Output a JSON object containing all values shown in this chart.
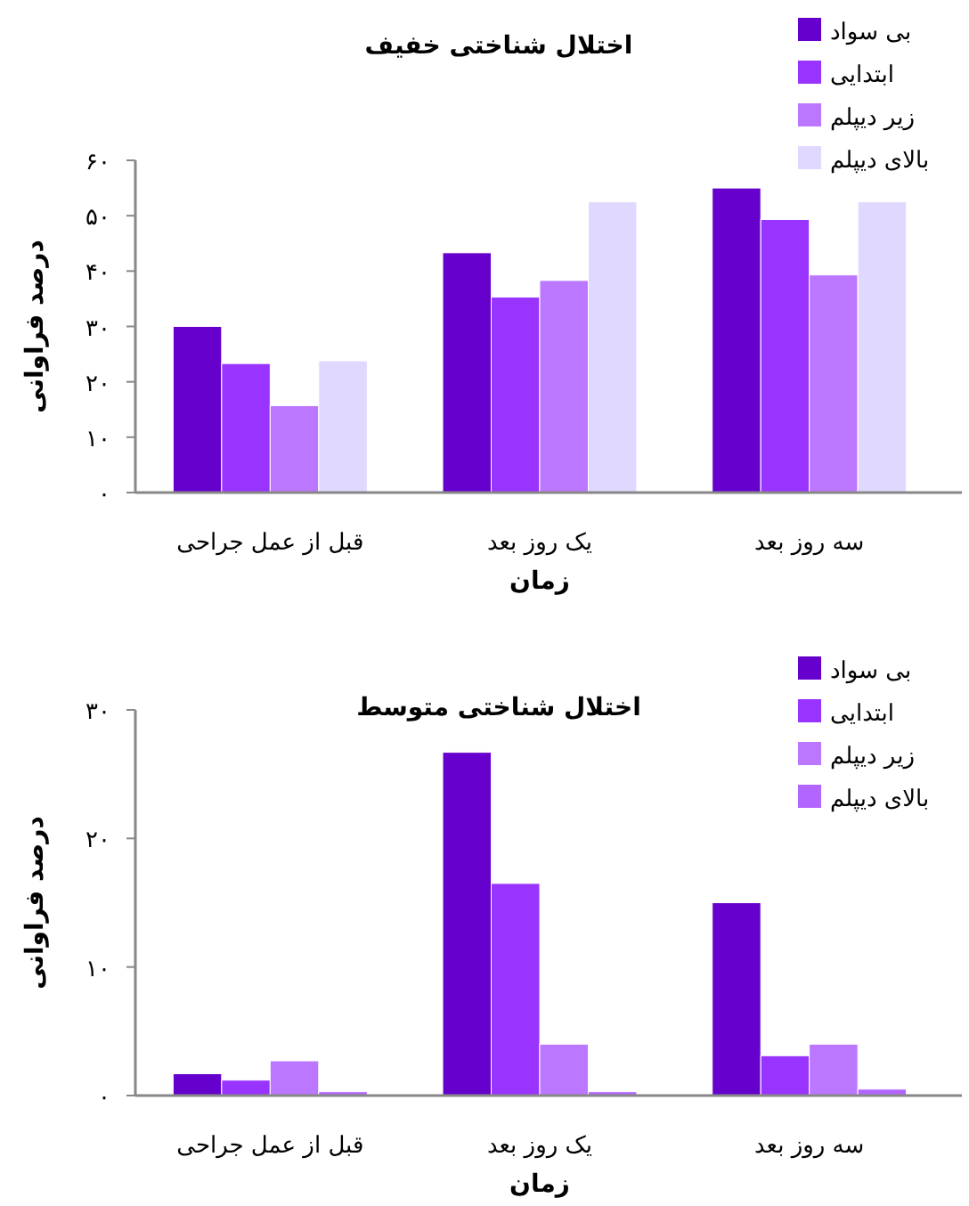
{
  "chart_data": [
    {
      "type": "bar",
      "title": "اختلال شناختی خفیف",
      "xlabel": "زمان",
      "ylabel": "درصد فراوانی",
      "categories": [
        "قبل از عمل جراحی",
        "یک روز بعد",
        "سه روز بعد"
      ],
      "series": [
        {
          "name": "بی سواد",
          "color": "#6600cc",
          "values": [
            30,
            43.3,
            55
          ]
        },
        {
          "name": "ابتدایی",
          "color": "#9933ff",
          "values": [
            23.3,
            35.3,
            49.3
          ]
        },
        {
          "name": "زیر دیپلم",
          "color": "#bb77ff",
          "values": [
            15.7,
            38.3,
            39.3
          ]
        },
        {
          "name": "بالای دیپلم",
          "color": "#e0d8ff",
          "values": [
            23.8,
            52.5,
            52.5
          ]
        }
      ],
      "ylim": [
        0,
        60
      ],
      "yticks": [
        {
          "value": 0,
          "label": "۰"
        },
        {
          "value": 10,
          "label": "۱۰"
        },
        {
          "value": 20,
          "label": "۲۰"
        },
        {
          "value": 30,
          "label": "۳۰"
        },
        {
          "value": 40,
          "label": "۴۰"
        },
        {
          "value": 50,
          "label": "۵۰"
        },
        {
          "value": 60,
          "label": "۶۰"
        }
      ],
      "legend": "top right"
    },
    {
      "type": "bar",
      "title": "اختلال شناختی متوسط",
      "xlabel": "زمان",
      "ylabel": "درصد فراوانی",
      "categories": [
        "قبل از عمل جراحی",
        "یک روز بعد",
        "سه روز بعد"
      ],
      "series": [
        {
          "name": "بی سواد",
          "color": "#6600cc",
          "values": [
            1.7,
            26.7,
            15
          ]
        },
        {
          "name": "ابتدایی",
          "color": "#9933ff",
          "values": [
            1.2,
            16.5,
            3.1
          ]
        },
        {
          "name": "زیر دیپلم",
          "color": "#bb77ff",
          "values": [
            2.7,
            4,
            4
          ]
        },
        {
          "name": "بالای دیپلم",
          "color": "#b366ff",
          "values": [
            0.3,
            0.3,
            0.5
          ]
        }
      ],
      "ylim": [
        0,
        30
      ],
      "yticks": [
        {
          "value": 0,
          "label": "۰"
        },
        {
          "value": 10,
          "label": "۱۰"
        },
        {
          "value": 20,
          "label": "۲۰"
        },
        {
          "value": 30,
          "label": "۳۰"
        }
      ],
      "legend": "top right"
    }
  ]
}
